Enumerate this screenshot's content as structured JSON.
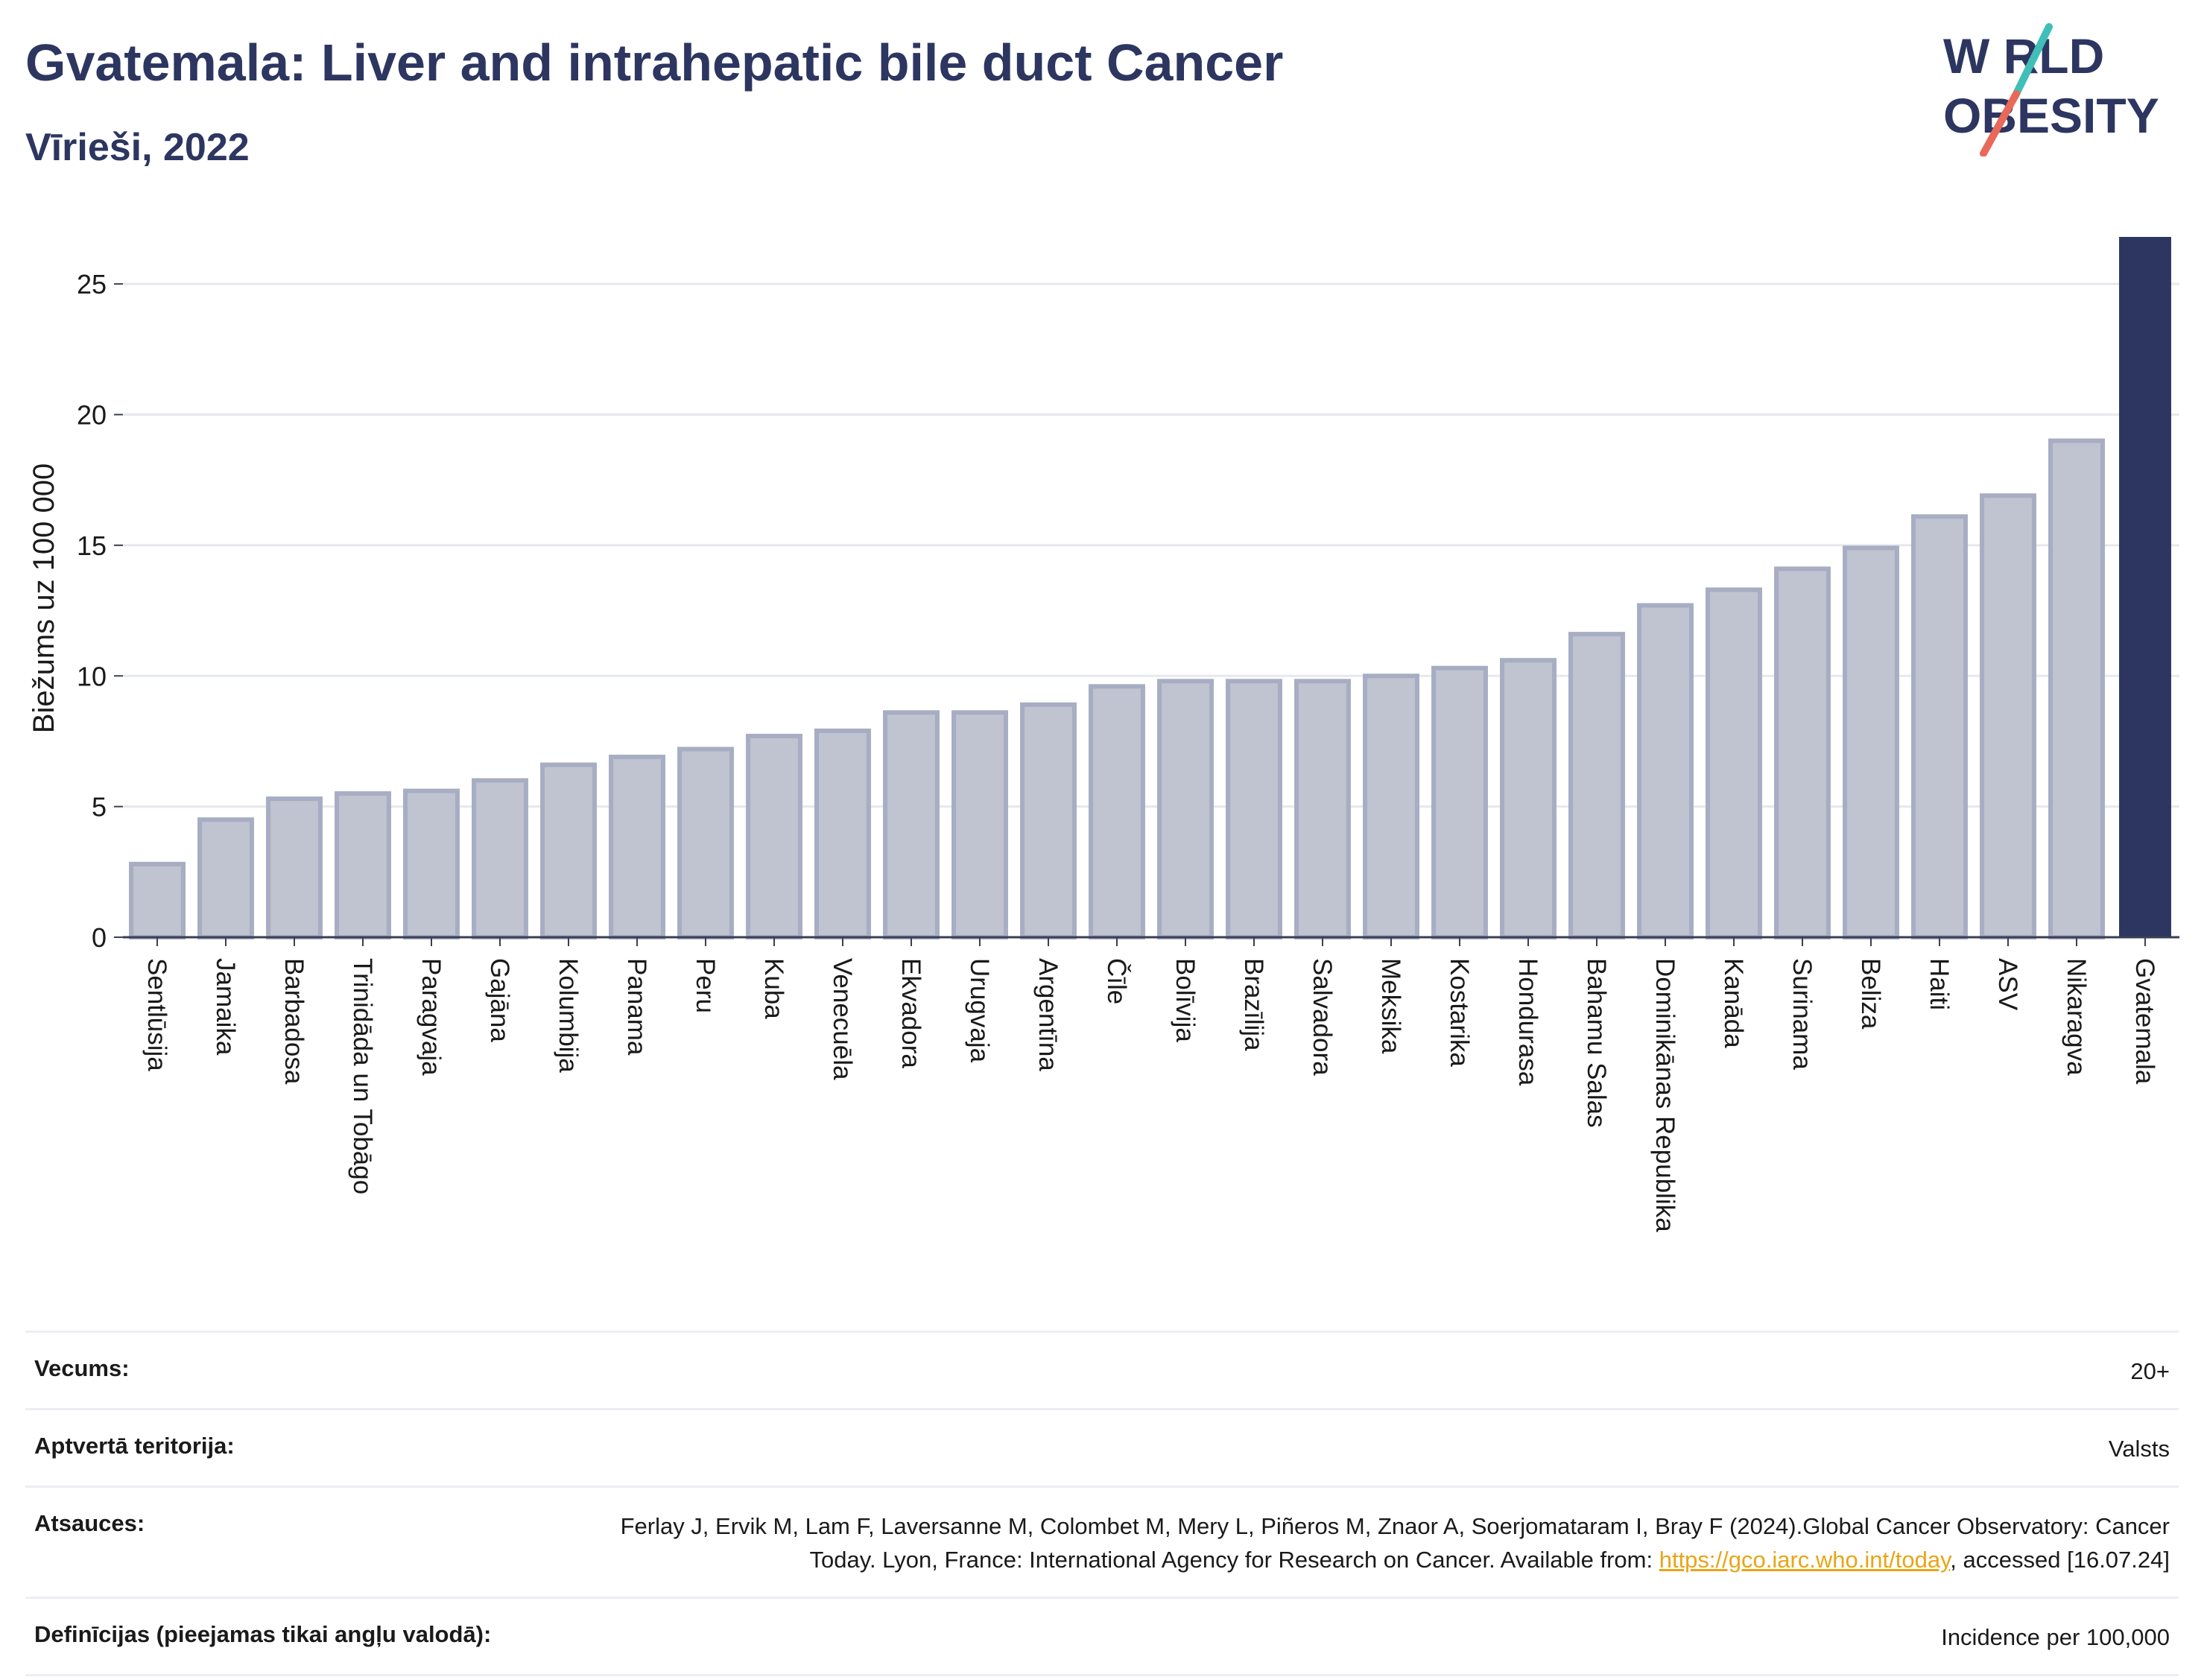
{
  "header": {
    "title": "Gvatemala: Liver and intrahepatic bile duct Cancer",
    "subtitle": "Vīrieši, 2022"
  },
  "logo": {
    "line1": "W RLD",
    "line2": "OBESITY",
    "icon": "world-obesity-logo"
  },
  "chart_data": {
    "type": "bar",
    "ylabel": "Biežums uz 100 000",
    "ylim": [
      0,
      26.8
    ],
    "yticks": [
      0,
      5,
      10,
      15,
      20,
      25
    ],
    "grid": true,
    "categories": [
      "Sentlūsija",
      "Jamaika",
      "Barbadosa",
      "Trinidāda un Tobāgo",
      "Paragvaja",
      "Gajāna",
      "Kolumbija",
      "Panama",
      "Peru",
      "Kuba",
      "Venecuēla",
      "Ekvadora",
      "Urugvaja",
      "Argentīna",
      "Čīle",
      "Bolīvija",
      "Brazīlija",
      "Salvadora",
      "Meksika",
      "Kostarika",
      "Hondurasa",
      "Bahamu Salas",
      "Dominikānas Republika",
      "Kanāda",
      "Surinama",
      "Beliza",
      "Haiti",
      "ASV",
      "Nikaragva",
      "Gvatemala"
    ],
    "values": [
      2.8,
      4.5,
      5.3,
      5.5,
      5.6,
      6.0,
      6.6,
      6.9,
      7.2,
      7.7,
      7.9,
      8.6,
      8.6,
      8.9,
      9.6,
      9.8,
      9.8,
      9.8,
      10.0,
      10.3,
      10.6,
      11.6,
      12.7,
      13.3,
      14.1,
      14.9,
      16.1,
      16.9,
      19.0,
      26.8
    ],
    "highlight": "Gvatemala",
    "colors": {
      "bar": "#c0c3d0",
      "bar_edge": "#a7adc2",
      "highlight": "#2c3660",
      "grid": "#e6e8ee",
      "axis": "#3a3f55"
    }
  },
  "meta": {
    "age_label": "Vecums:",
    "age_value": "20+",
    "territory_label": "Aptvertā teritorija:",
    "territory_value": "Valsts",
    "refs_label": "Atsauces:",
    "refs_text": "Ferlay J, Ervik M, Lam F, Laversanne M, Colombet M, Mery L, Piñeros M, Znaor A, Soerjomataram I, Bray F (2024).Global Cancer Observatory: Cancer Today. Lyon, France: International Agency for Research on Cancer. Available from: ",
    "refs_link": "https://gco.iarc.who.int/today",
    "refs_tail": ", accessed [16.07.24]",
    "def_label": "Definīcijas (pieejamas tikai angļu valodā):",
    "def_value": "Incidence per 100,000"
  }
}
